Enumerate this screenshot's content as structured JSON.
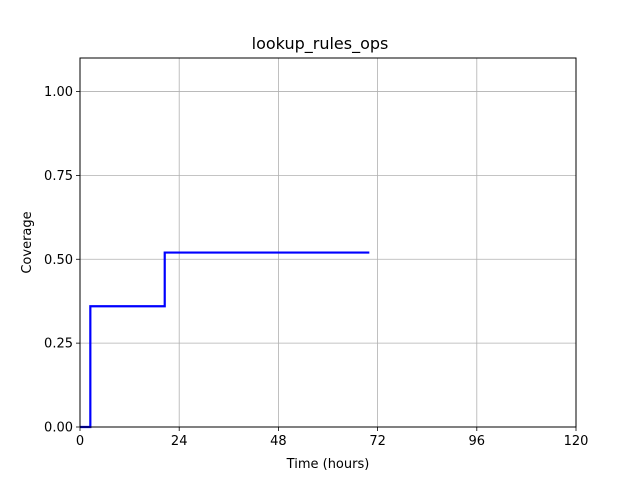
{
  "chart_data": {
    "type": "line",
    "title": "lookup_rules_ops",
    "xlabel": "Time (hours)",
    "ylabel": "Coverage",
    "xlim": [
      0,
      120
    ],
    "ylim": [
      0,
      1.1
    ],
    "xticks": [
      0,
      24,
      48,
      72,
      96,
      120
    ],
    "yticks": [
      0.0,
      0.25,
      0.5,
      0.75,
      1.0
    ],
    "xtick_labels": [
      "0",
      "24",
      "48",
      "72",
      "96",
      "120"
    ],
    "ytick_labels": [
      "0.00",
      "0.25",
      "0.50",
      "0.75",
      "1.00"
    ],
    "grid": true,
    "line_style": "step",
    "series": [
      {
        "color": "#0000ff",
        "x": [
          0,
          2.5,
          2.5,
          20.5,
          20.5,
          70
        ],
        "y": [
          0,
          0,
          0.36,
          0.36,
          0.52,
          0.52
        ]
      }
    ]
  }
}
